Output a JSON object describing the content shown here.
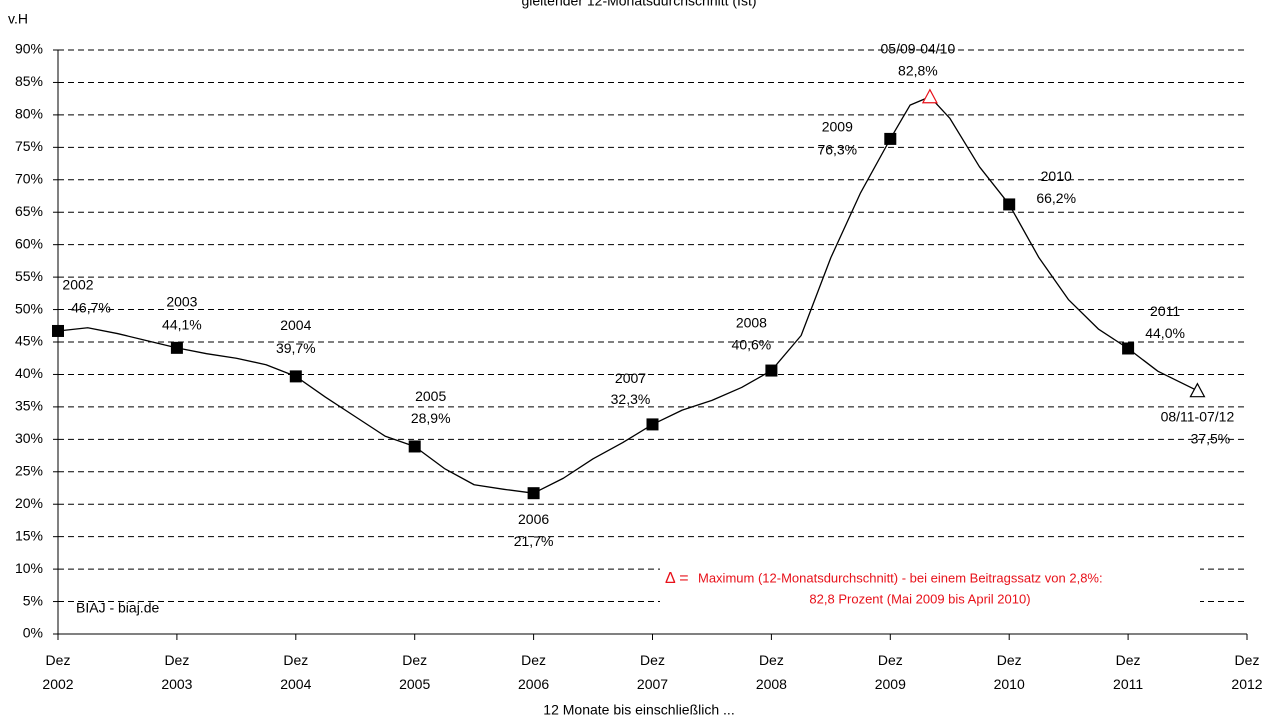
{
  "chart_data": {
    "type": "line",
    "title": "gleitender 12-Monatsdurchschnitt (Ist)",
    "y_label": "v.H",
    "x_label": "12 Monate bis einschließlich ...",
    "source": "BIAJ - biaj.de",
    "note_symbol": "Δ =",
    "note": [
      "Maximum (12-Monatsdurchschnitt) - bei einem Beitragssatz von 2,8%:",
      "82,8 Prozent (Mai 2009 bis April 2010)"
    ],
    "note_color": "#e8111a",
    "xlim": [
      2002.917,
      2012.917
    ],
    "ylim": [
      0,
      90
    ],
    "grid": true,
    "yticks": [
      {
        "value": 0,
        "label": "0%"
      },
      {
        "value": 5,
        "label": "5%"
      },
      {
        "value": 10,
        "label": "10%"
      },
      {
        "value": 15,
        "label": "15%"
      },
      {
        "value": 20,
        "label": "20%"
      },
      {
        "value": 25,
        "label": "25%"
      },
      {
        "value": 30,
        "label": "30%"
      },
      {
        "value": 35,
        "label": "35%"
      },
      {
        "value": 40,
        "label": "40%"
      },
      {
        "value": 45,
        "label": "45%"
      },
      {
        "value": 50,
        "label": "50%"
      },
      {
        "value": 55,
        "label": "55%"
      },
      {
        "value": 60,
        "label": "60%"
      },
      {
        "value": 65,
        "label": "65%"
      },
      {
        "value": 70,
        "label": "70%"
      },
      {
        "value": 75,
        "label": "75%"
      },
      {
        "value": 80,
        "label": "80%"
      },
      {
        "value": 85,
        "label": "85%"
      },
      {
        "value": 90,
        "label": "90%"
      }
    ],
    "xticks": [
      {
        "value": 2002.917,
        "label": "Dez 2002"
      },
      {
        "value": 2003.917,
        "label": "Dez 2003"
      },
      {
        "value": 2004.917,
        "label": "Dez 2004"
      },
      {
        "value": 2005.917,
        "label": "Dez 2005"
      },
      {
        "value": 2006.917,
        "label": "Dez 2006"
      },
      {
        "value": 2007.917,
        "label": "Dez 2007"
      },
      {
        "value": 2008.917,
        "label": "Dez 2008"
      },
      {
        "value": 2009.917,
        "label": "Dez 2009"
      },
      {
        "value": 2010.917,
        "label": "Dez 2010"
      },
      {
        "value": 2011.917,
        "label": "Dez 2011"
      },
      {
        "value": 2012.917,
        "label": "Dez 2012"
      }
    ],
    "series": [
      {
        "color": "#000000",
        "x": [
          2002.917,
          2003.167,
          2003.417,
          2003.667,
          2003.917,
          2004.167,
          2004.417,
          2004.667,
          2004.917,
          2005.167,
          2005.417,
          2005.667,
          2005.917,
          2006.167,
          2006.417,
          2006.667,
          2006.917,
          2007.167,
          2007.417,
          2007.667,
          2007.917,
          2008.167,
          2008.417,
          2008.667,
          2008.917,
          2009.167,
          2009.417,
          2009.667,
          2009.917,
          2010.083,
          2010.25,
          2010.417,
          2010.667,
          2010.917,
          2011.167,
          2011.417,
          2011.667,
          2011.917,
          2012.167,
          2012.333,
          2012.5
        ],
        "values": [
          46.7,
          47.2,
          46.3,
          45.2,
          44.1,
          43.2,
          42.5,
          41.5,
          39.7,
          36.5,
          33.5,
          30.5,
          28.9,
          25.5,
          23.0,
          22.3,
          21.7,
          24.0,
          27.0,
          29.5,
          32.3,
          34.5,
          36.0,
          38.0,
          40.6,
          46.0,
          58.0,
          68.0,
          76.3,
          81.5,
          82.8,
          79.5,
          72.0,
          66.2,
          58.0,
          51.5,
          47.0,
          44.0,
          40.5,
          39.0,
          37.5
        ]
      }
    ],
    "markers": {
      "color": "#000000",
      "x": [
        2002.917,
        2003.917,
        2004.917,
        2005.917,
        2006.917,
        2007.917,
        2008.917,
        2009.917,
        2010.917,
        2011.917
      ],
      "labels": [
        "2002",
        "2003",
        "2004",
        "2005",
        "2006",
        "2007",
        "2008",
        "2009",
        "2010",
        "2011"
      ],
      "values": [
        46.7,
        44.1,
        39.7,
        28.9,
        21.7,
        32.3,
        40.6,
        76.3,
        66.2,
        44.0
      ],
      "value_labels": [
        "46,7%",
        "44,1%",
        "39,7%",
        "28,9%",
        "21,7%",
        "32,3%",
        "40,6%",
        "76,3%",
        "66,2%",
        "44,0%"
      ]
    },
    "max_marker": {
      "x": 2010.25,
      "value": 82.8,
      "value_label": "82,8%",
      "label": "05/09-04/10",
      "color": "#e8111a"
    },
    "end_marker": {
      "x": 2012.5,
      "value": 37.5,
      "value_label": "37,5%",
      "label": "08/11-07/12",
      "color": "#000000"
    }
  }
}
